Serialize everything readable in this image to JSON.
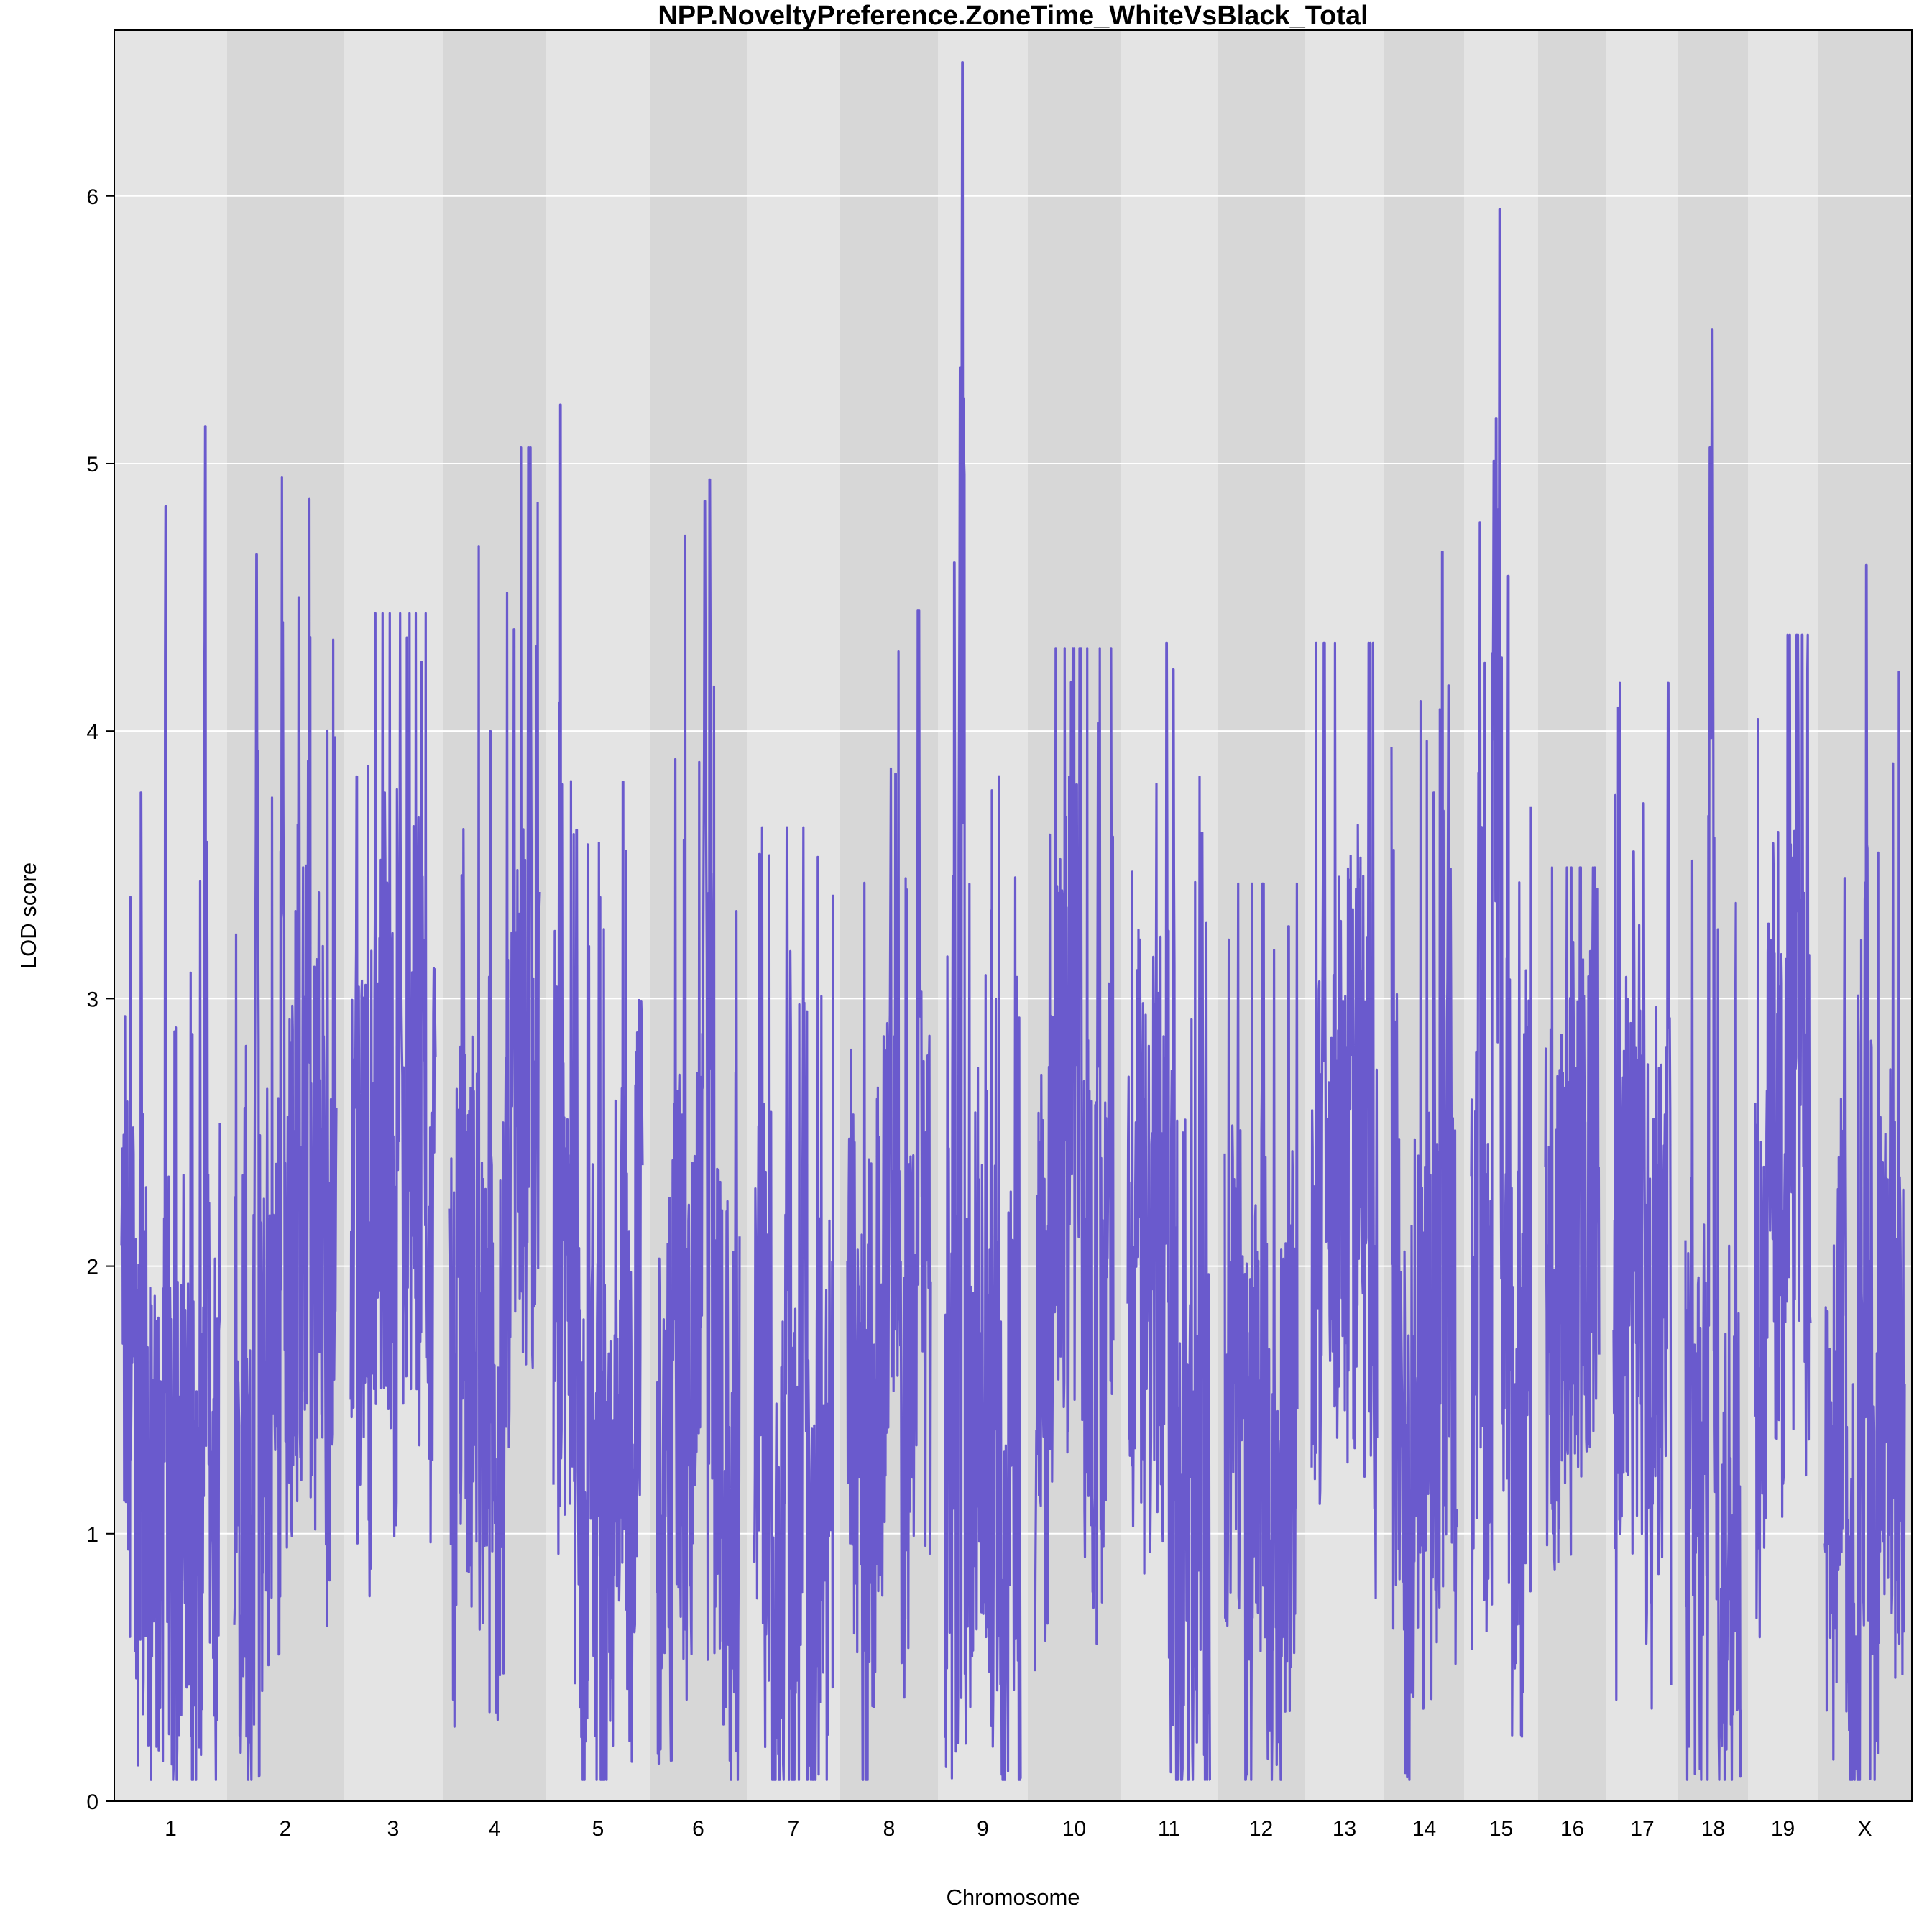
{
  "chart_data": {
    "type": "line",
    "title": "NPP.NoveltyPreference.ZoneTime_WhiteVsBlack_Total",
    "xlabel": "Chromosome",
    "ylabel": "LOD score",
    "ylim": [
      0,
      6.62
    ],
    "yticks": [
      0,
      1,
      2,
      3,
      4,
      5,
      6
    ],
    "grid": true,
    "line_color": "#6a5acd",
    "band_colors": [
      "#e4e4e4",
      "#d7d7d7"
    ],
    "chromosomes": [
      {
        "name": "1",
        "peak": 5.14,
        "peak_at": 0.85,
        "peaks": [
          {
            "at": 0.45,
            "lod": 4.84
          },
          {
            "at": 0.2,
            "lod": 3.77
          }
        ]
      },
      {
        "name": "2",
        "peak": 4.95,
        "peak_at": 0.47,
        "peaks": [
          {
            "at": 0.22,
            "lod": 4.66
          },
          {
            "at": 0.63,
            "lod": 4.5
          }
        ]
      },
      {
        "name": "3",
        "peak": 4.44,
        "peak_at": 0.58,
        "peaks": [
          {
            "at": 0.07,
            "lod": 3.83
          },
          {
            "at": 0.4,
            "lod": 3.77
          }
        ]
      },
      {
        "name": "4",
        "peak": 5.06,
        "peak_at": 0.9,
        "peaks": [
          {
            "at": 0.72,
            "lod": 4.38
          },
          {
            "at": 0.45,
            "lod": 4.0
          }
        ]
      },
      {
        "name": "5",
        "peak": 5.22,
        "peak_at": 0.08,
        "peaks": [
          {
            "at": 0.26,
            "lod": 3.63
          },
          {
            "at": 0.78,
            "lod": 3.81
          }
        ]
      },
      {
        "name": "6",
        "peak": 4.94,
        "peak_at": 0.64,
        "peaks": [
          {
            "at": 0.34,
            "lod": 4.73
          },
          {
            "at": 0.58,
            "lod": 4.86
          }
        ]
      },
      {
        "name": "7",
        "peak": 3.64,
        "peak_at": 0.42,
        "peaks": [
          {
            "at": 0.63,
            "lod": 3.64
          },
          {
            "at": 0.07,
            "lod": 3.54
          }
        ]
      },
      {
        "name": "8",
        "peak": 4.45,
        "peak_at": 0.86,
        "peaks": [
          {
            "at": 0.52,
            "lod": 3.86
          },
          {
            "at": 0.58,
            "lod": 3.84
          }
        ]
      },
      {
        "name": "9",
        "peak": 6.5,
        "peak_at": 0.23,
        "peaks": [
          {
            "at": 0.2,
            "lod": 5.36
          },
          {
            "at": 0.12,
            "lod": 4.63
          }
        ]
      },
      {
        "name": "10",
        "peak": 4.31,
        "peak_at": 0.57,
        "peaks": [
          {
            "at": 0.81,
            "lod": 4.03
          },
          {
            "at": 0.53,
            "lod": 3.8
          }
        ]
      },
      {
        "name": "11",
        "peak": 4.33,
        "peak_at": 0.47,
        "peaks": [
          {
            "at": 0.55,
            "lod": 4.23
          },
          {
            "at": 0.9,
            "lod": 3.62
          }
        ]
      },
      {
        "name": "12",
        "peak": 3.43,
        "peak_at": 0.52,
        "peaks": [
          {
            "at": 0.88,
            "lod": 3.27
          }
        ]
      },
      {
        "name": "13",
        "peak": 4.33,
        "peak_at": 0.19,
        "peaks": [
          {
            "at": 0.62,
            "lod": 3.21
          }
        ]
      },
      {
        "name": "14",
        "peak": 4.67,
        "peak_at": 0.78,
        "peaks": [
          {
            "at": 0.65,
            "lod": 3.77
          },
          {
            "at": 0.87,
            "lod": 4.17
          }
        ]
      },
      {
        "name": "15",
        "peak": 5.95,
        "peak_at": 0.48,
        "peaks": [
          {
            "at": 0.42,
            "lod": 5.17
          },
          {
            "at": 0.38,
            "lod": 5.01
          },
          {
            "at": 0.15,
            "lod": 4.78
          },
          {
            "at": 0.62,
            "lod": 4.58
          }
        ]
      },
      {
        "name": "16",
        "peak": 3.49,
        "peak_at": 0.65,
        "peaks": [
          {
            "at": 0.97,
            "lod": 3.41
          }
        ]
      },
      {
        "name": "17",
        "peak": 4.18,
        "peak_at": 0.95,
        "peaks": [
          {
            "at": 0.52,
            "lod": 3.73
          },
          {
            "at": 0.35,
            "lod": 3.55
          }
        ]
      },
      {
        "name": "18",
        "peak": 5.5,
        "peak_at": 0.48,
        "peaks": [
          {
            "at": 0.44,
            "lod": 5.06
          }
        ]
      },
      {
        "name": "19",
        "peak": 4.36,
        "peak_at": 0.85,
        "peaks": [
          {
            "at": 0.24,
            "lod": 3.28
          }
        ]
      },
      {
        "name": "X",
        "peak": 4.62,
        "peak_at": 0.52,
        "peaks": [
          {
            "at": 0.25,
            "lod": 3.45
          }
        ]
      }
    ]
  }
}
